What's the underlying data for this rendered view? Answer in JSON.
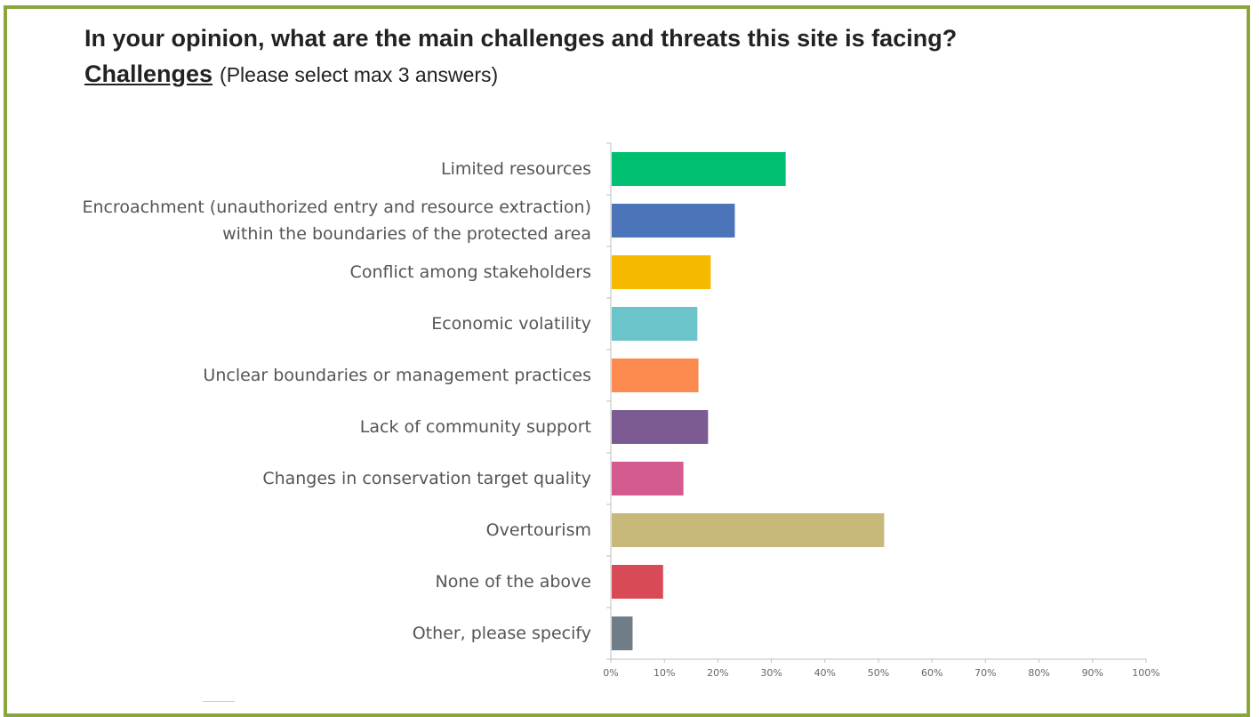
{
  "header": {
    "question": "In your opinion, what are the main challenges and threats this site is facing?",
    "section": "Challenges",
    "instruction": "(Please select max 3 answers)"
  },
  "chart_data": {
    "type": "bar",
    "orientation": "horizontal",
    "categories": [
      [
        "Limited resources"
      ],
      [
        "Encroachment (unauthorized entry and resource extraction)",
        "within the boundaries of the protected area"
      ],
      [
        "Conflict among stakeholders"
      ],
      [
        "Economic volatility"
      ],
      [
        "Unclear boundaries or management practices"
      ],
      [
        "Lack of community support"
      ],
      [
        "Changes in conservation target quality"
      ],
      [
        "Overtourism"
      ],
      [
        "None of the above"
      ],
      [
        "Other, please specify"
      ]
    ],
    "values": [
      32.5,
      23,
      18.5,
      16,
      16.2,
      18,
      13.4,
      50.9,
      9.6,
      3.9
    ],
    "colors": [
      "#00bf70",
      "#4c74b9",
      "#f6b900",
      "#6cc4cb",
      "#fc8a4e",
      "#7b5b92",
      "#d35b8f",
      "#c8b87a",
      "#d94a57",
      "#707d86"
    ],
    "xlim": [
      0,
      100
    ],
    "xticks": [
      "0%",
      "10%",
      "20%",
      "30%",
      "40%",
      "50%",
      "60%",
      "70%",
      "80%",
      "90%",
      "100%"
    ],
    "xlabel": "",
    "ylabel": "",
    "grid": false,
    "legend": "none"
  }
}
